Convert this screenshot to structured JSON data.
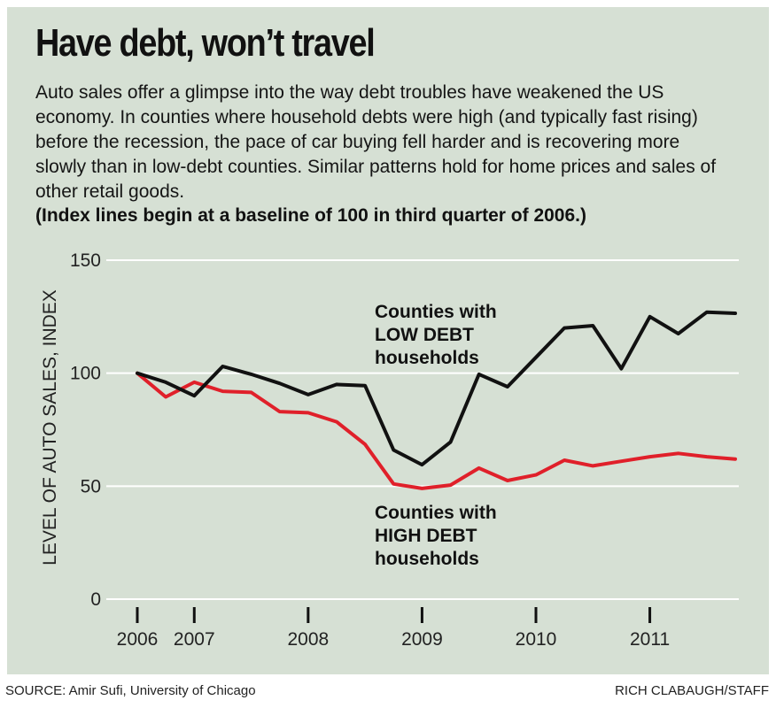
{
  "header": {
    "title": "Have debt, won’t travel",
    "subtitle": "Auto sales offer a glimpse into the way debt troubles have weakened the US economy. In counties where household debts were high (and typically fast rising) before the recession, the pace of car buying fell harder and is recovering more slowly than in low-debt counties. Similar patterns hold for home prices and sales of other retail goods.",
    "note": "(Index lines begin at a baseline of 100 in third quarter of 2006.)"
  },
  "footer": {
    "source": "SOURCE: Amir Sufi, University of Chicago",
    "credit": "RICH CLABAUGH/STAFF"
  },
  "colors": {
    "background": "#d6e0d4",
    "low_debt_line": "#111111",
    "high_debt_line": "#e0202a"
  },
  "chart_data": {
    "type": "line",
    "title": "Have debt, won’t travel",
    "xlabel": "",
    "ylabel": "LEVEL OF AUTO SALES, INDEX",
    "ylim": [
      0,
      150
    ],
    "yticks": [
      0,
      50,
      100,
      150
    ],
    "xlim": [
      2006.5,
      2011.75
    ],
    "xticks": [
      {
        "value": 2006.5,
        "label": "2006"
      },
      {
        "value": 2007.0,
        "label": "2007"
      },
      {
        "value": 2008.0,
        "label": "2008"
      },
      {
        "value": 2009.0,
        "label": "2009"
      },
      {
        "value": 2010.0,
        "label": "2010"
      },
      {
        "value": 2011.0,
        "label": "2011"
      }
    ],
    "x": [
      2006.5,
      2006.75,
      2007.0,
      2007.25,
      2007.5,
      2007.75,
      2008.0,
      2008.25,
      2008.5,
      2008.75,
      2009.0,
      2009.25,
      2009.5,
      2009.75,
      2010.0,
      2010.25,
      2010.5,
      2010.75,
      2011.0,
      2011.25,
      2011.5,
      2011.75
    ],
    "series": [
      {
        "name": "Counties with LOW DEBT households",
        "annotation": [
          "Counties with",
          "LOW DEBT",
          "households"
        ],
        "color": "#111111",
        "values": [
          100,
          96,
          90,
          103,
          99.5,
          95.5,
          90.5,
          95,
          94.5,
          66,
          59.5,
          69.5,
          99.5,
          94,
          107,
          120,
          121,
          102,
          125,
          117.5,
          127,
          126.5
        ]
      },
      {
        "name": "Counties with HIGH DEBT households",
        "annotation": [
          "Counties with",
          "HIGH DEBT",
          "households"
        ],
        "color": "#e0202a",
        "values": [
          100,
          89.5,
          96,
          92,
          91.5,
          83,
          82.5,
          78.5,
          68.5,
          51,
          49,
          50.5,
          58,
          52.5,
          55,
          61.5,
          59,
          61,
          63,
          64.5,
          63,
          62
        ]
      }
    ]
  }
}
